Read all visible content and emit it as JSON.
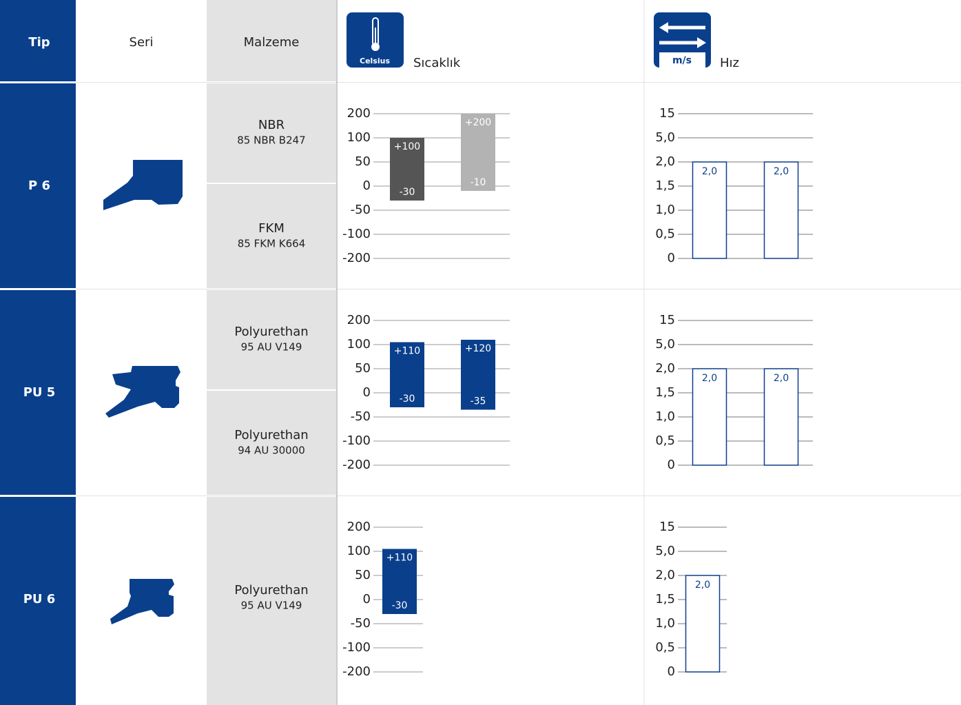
{
  "header": {
    "tip": "Tip",
    "seri": "Seri",
    "malzeme": "Malzeme",
    "temp_icon": "Celsius",
    "temp": "Sıcaklık",
    "speed_icon": "m/s",
    "speed": "Hız"
  },
  "rows": [
    {
      "tip": "P 6",
      "materials": [
        {
          "name": "NBR",
          "code": "85 NBR B247"
        },
        {
          "name": "FKM",
          "code": "85 FKM K664"
        }
      ],
      "temperature": {
        "type": "range_bar",
        "ylim": [
          -200,
          200
        ],
        "yticks": [
          200,
          100,
          50,
          0,
          -50,
          -100,
          -200
        ],
        "bars": [
          {
            "color": "#555555",
            "values": [
              -30,
              100
            ],
            "value_labels": [
              "-30",
              "+100"
            ]
          },
          {
            "color": "#b3b3b3",
            "values": [
              -10,
              200
            ],
            "value_labels": [
              "-10",
              "+200"
            ]
          }
        ]
      },
      "speed": {
        "type": "bar",
        "ylim": [
          0,
          15
        ],
        "color": "#0a3f8c",
        "yticks": [
          15,
          {
            "value": 5,
            "label": "5,0"
          },
          {
            "value": 2,
            "label": "2,0"
          },
          {
            "value": 1.5,
            "label": "1,5"
          },
          {
            "value": 1,
            "label": "1,0"
          },
          {
            "value": 0.5,
            "label": "0,5"
          },
          0
        ],
        "values": [
          2,
          2
        ],
        "value_labels": [
          "2,0",
          "2,0"
        ]
      }
    },
    {
      "tip": "PU 5",
      "materials": [
        {
          "name": "Polyurethan",
          "code": "95 AU V149"
        },
        {
          "name": "Polyurethan",
          "code": "94 AU 30000"
        }
      ],
      "temperature": {
        "type": "range_bar",
        "ylim": [
          -200,
          200
        ],
        "yticks": [
          200,
          100,
          50,
          0,
          -50,
          -100,
          -200
        ],
        "bars": [
          {
            "color": "#0a3f8c",
            "values": [
              -30,
              110
            ],
            "value_labels": [
              "-30",
              "+110"
            ]
          },
          {
            "color": "#0a3f8c",
            "values": [
              -35,
              120
            ],
            "value_labels": [
              "-35",
              "+120"
            ]
          }
        ]
      },
      "speed": {
        "type": "bar",
        "ylim": [
          0,
          15
        ],
        "color": "#0a3f8c",
        "yticks": [
          15,
          {
            "value": 5,
            "label": "5,0"
          },
          {
            "value": 2,
            "label": "2,0"
          },
          {
            "value": 1.5,
            "label": "1,5"
          },
          {
            "value": 1,
            "label": "1,0"
          },
          {
            "value": 0.5,
            "label": "0,5"
          },
          0
        ],
        "values": [
          2,
          2
        ],
        "value_labels": [
          "2,0",
          "2,0"
        ]
      }
    },
    {
      "tip": "PU 6",
      "materials": [
        {
          "name": "Polyurethan",
          "code": "95 AU V149"
        }
      ],
      "temperature": {
        "type": "range_bar",
        "ylim": [
          -200,
          200
        ],
        "yticks": [
          200,
          100,
          50,
          0,
          -50,
          -100,
          -200
        ],
        "bars": [
          {
            "color": "#0a3f8c",
            "values": [
              -30,
              110
            ],
            "value_labels": [
              "-30",
              "+110"
            ]
          }
        ]
      },
      "speed": {
        "type": "bar",
        "ylim": [
          0,
          15
        ],
        "color": "#0a3f8c",
        "yticks": [
          15,
          {
            "value": 5,
            "label": "5,0"
          },
          {
            "value": 2,
            "label": "2,0"
          },
          {
            "value": 1.5,
            "label": "1,5"
          },
          {
            "value": 1,
            "label": "1,0"
          },
          {
            "value": 0.5,
            "label": "0,5"
          },
          0
        ],
        "values": [
          2
        ],
        "value_labels": [
          "2,0"
        ]
      }
    }
  ]
}
